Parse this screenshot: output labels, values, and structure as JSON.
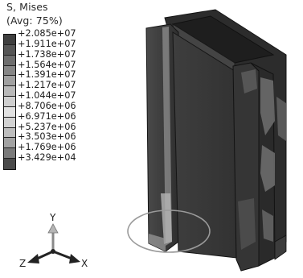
{
  "legend": {
    "title": "S, Mises",
    "averaging": "(Avg: 75%)",
    "values": [
      "+2.085e+07",
      "+1.911e+07",
      "+1.738e+07",
      "+1.564e+07",
      "+1.391e+07",
      "+1.217e+07",
      "+1.044e+07",
      "+8.706e+06",
      "+6.971e+06",
      "+5.237e+06",
      "+3.503e+06",
      "+1.769e+06",
      "+3.429e+04"
    ],
    "swatch_colors": [
      "#3f3f3f",
      "#555555",
      "#6d6d6d",
      "#868686",
      "#a0a0a0",
      "#b9b9b9",
      "#cfcfcf",
      "#e2e2e2",
      "#d2d2d2",
      "#bdbdbd",
      "#a2a2a2",
      "#7a7a7a",
      "#4a4a4a"
    ]
  },
  "triad": {
    "y_label": "Y",
    "x_label": "X",
    "z_label": "Z"
  },
  "colors": {
    "body_dark": "#3a3a3a",
    "highlight_circle": "#9a9a9a"
  }
}
